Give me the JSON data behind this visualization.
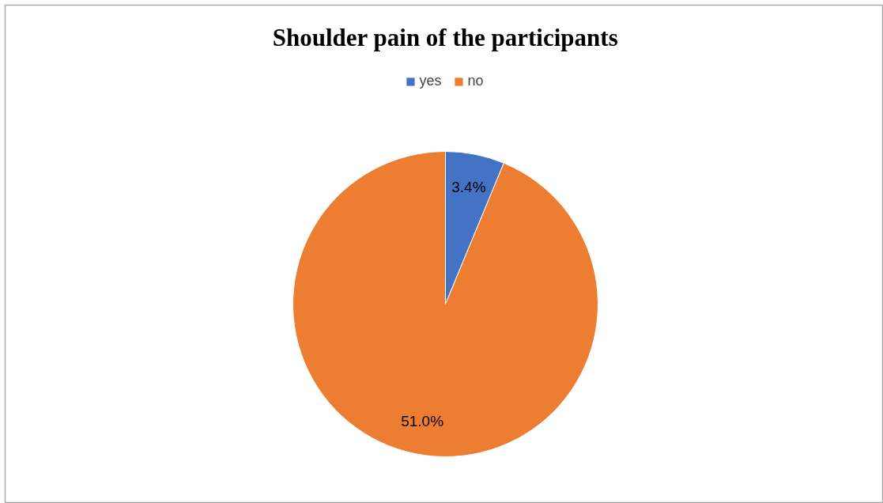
{
  "chart_data": {
    "type": "pie",
    "title": "Shoulder pain of the participants",
    "categories": [
      "yes",
      "no"
    ],
    "values": [
      3.4,
      51.0
    ],
    "colors": [
      "#4472c4",
      "#ed7d31"
    ],
    "value_labels": [
      "3.4%",
      "51.0%"
    ],
    "legend": "top"
  }
}
